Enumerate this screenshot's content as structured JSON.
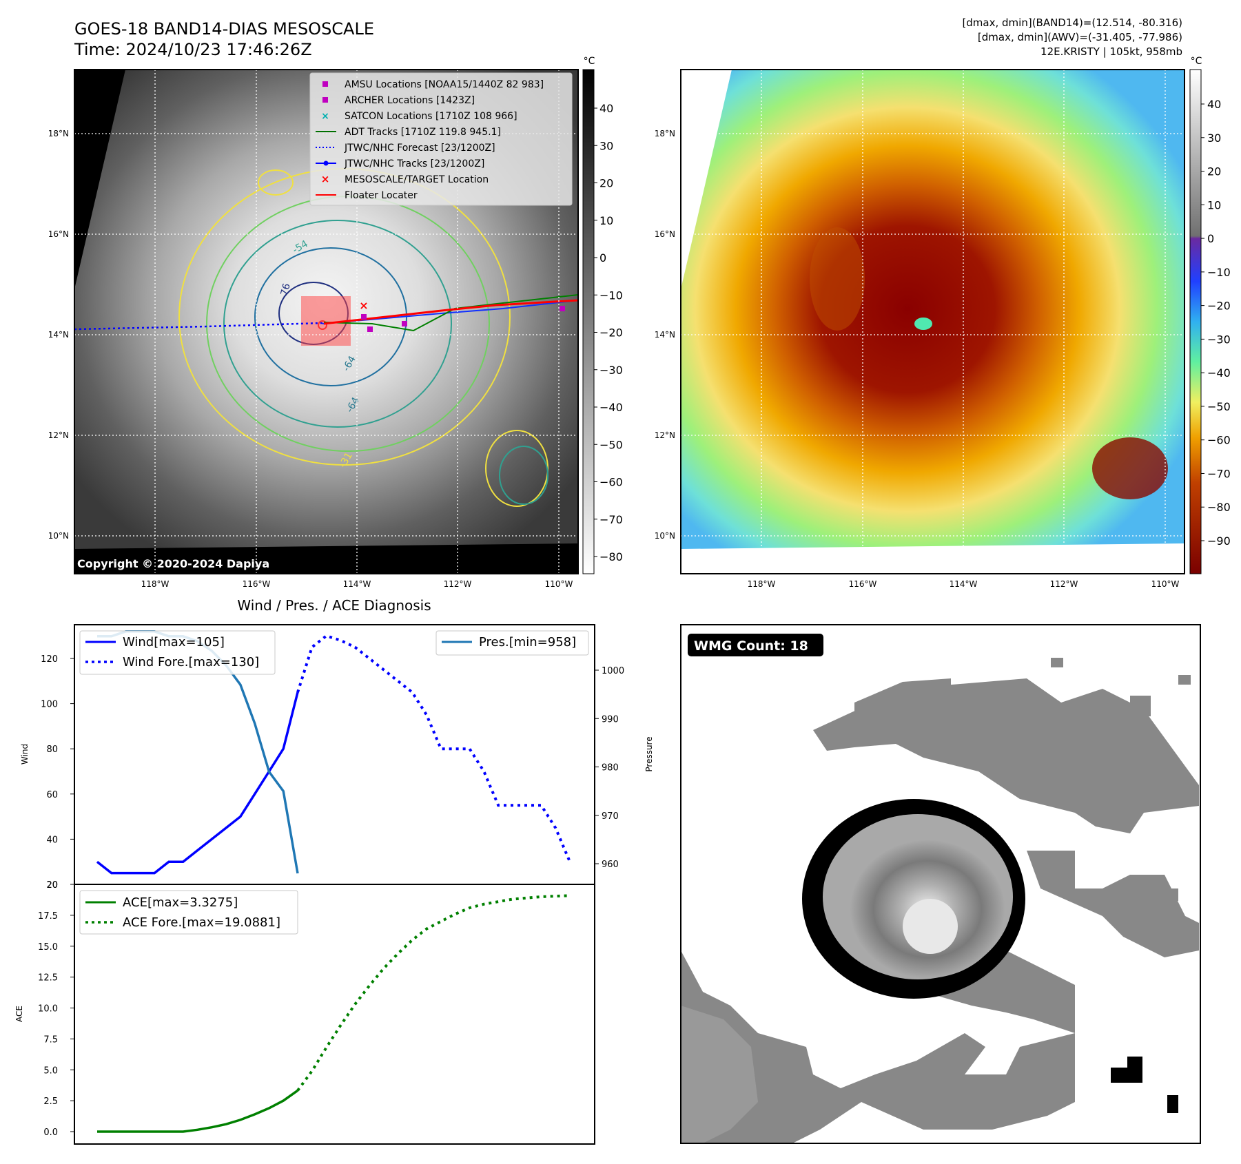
{
  "header": {
    "title": "GOES-18 BAND14-DIAS MESOSCALE",
    "time": "Time: 2024/10/23 17:46:26Z",
    "stats_band14": "[dmax, dmin](BAND14)=(12.514, -80.316)",
    "stats_awv": "[dmax, dmin](AWV)=(-31.405, -77.986)",
    "storm_info": "12E.KRISTY | 105kt, 958mb",
    "copyright": "Copyright © 2020-2024 Dapiya"
  },
  "map": {
    "lon_labels": [
      "118°W",
      "116°W",
      "114°W",
      "112°W",
      "110°W"
    ],
    "lat_labels": [
      "18°N",
      "16°N",
      "14°N",
      "12°N",
      "10°N"
    ],
    "contour_labels": [
      "-64",
      "-64",
      "-76",
      "-54",
      "-31"
    ]
  },
  "legend": [
    {
      "label": "AMSU Locations [NOAA15/1440Z 82 983]",
      "color": "#c000c0",
      "marker": "square"
    },
    {
      "label": "ARCHER Locations [1423Z]",
      "color": "#c000c0",
      "marker": "square"
    },
    {
      "label": "SATCON Locations [1710Z 108 966]",
      "color": "#00b0b0",
      "marker": "x"
    },
    {
      "label": "ADT Tracks [1710Z 119.8 945.1]",
      "color": "#007000",
      "marker": "line-dot"
    },
    {
      "label": "JTWC/NHC Forecast [23/1200Z]",
      "color": "#0000ff",
      "marker": "dotted"
    },
    {
      "label": "JTWC/NHC Tracks [23/1200Z]",
      "color": "#0000ff",
      "marker": "line-dot"
    },
    {
      "label": "MESOSCALE/TARGET Location",
      "color": "#ff0000",
      "marker": "x"
    },
    {
      "label": "Floater Locater",
      "color": "#ff0000",
      "marker": "line"
    }
  ],
  "colorbar_gray": {
    "unit": "°C",
    "ticks": [
      "40",
      "30",
      "20",
      "10",
      "0",
      "−10",
      "−20",
      "−30",
      "−40",
      "−50",
      "−60",
      "−70",
      "−80"
    ]
  },
  "colorbar_color": {
    "unit": "°C",
    "ticks": [
      "40",
      "30",
      "20",
      "10",
      "0",
      "−10",
      "−20",
      "−30",
      "−40",
      "−50",
      "−60",
      "−70",
      "−80",
      "−90"
    ]
  },
  "wmg": {
    "label": "WMG Count: 18"
  },
  "chart_data": [
    {
      "type": "line",
      "title": "Wind / Pres. / ACE Diagnosis",
      "xlabel": "",
      "ylabel": "Wind",
      "ylabel_right": "Pressure",
      "y_ticks": [
        "120",
        "100",
        "80",
        "60",
        "40",
        "20"
      ],
      "y_right_ticks": [
        "1000",
        "990",
        "980",
        "970",
        "960"
      ],
      "ylim": [
        20,
        133
      ],
      "y2lim": [
        955,
        1009
      ],
      "x": [
        0,
        1,
        2,
        3,
        4,
        5,
        6,
        7,
        8,
        9,
        10,
        11,
        12,
        13,
        14,
        15,
        16,
        17,
        18,
        19,
        20,
        21,
        22,
        23,
        24,
        25,
        26,
        27,
        28,
        29,
        30,
        31,
        32,
        33
      ],
      "series": [
        {
          "name": "Wind[max=105]",
          "color": "#0000ff",
          "style": "solid",
          "x": [
            0,
            1,
            2,
            3,
            4,
            5,
            6,
            7,
            8,
            9,
            10,
            11,
            12,
            13,
            14
          ],
          "values": [
            30,
            25,
            25,
            25,
            25,
            30,
            30,
            35,
            40,
            45,
            50,
            60,
            70,
            80,
            105
          ]
        },
        {
          "name": "Wind Fore.[max=130]",
          "color": "#0000ff",
          "style": "dotted",
          "x": [
            14,
            15,
            16,
            17,
            18,
            19,
            20,
            21,
            22,
            23,
            24,
            25,
            26,
            27,
            28,
            29,
            30,
            31,
            32,
            33
          ],
          "values": [
            105,
            125,
            130,
            128,
            125,
            120,
            115,
            110,
            105,
            95,
            80,
            80,
            80,
            70,
            55,
            55,
            55,
            55,
            45,
            30
          ]
        },
        {
          "name": "Pres.[min=958]",
          "color": "#1f77b4",
          "style": "solid",
          "axis": "right",
          "x": [
            0,
            1,
            2,
            3,
            4,
            5,
            6,
            7,
            8,
            9,
            10,
            11,
            12,
            13,
            14
          ],
          "values": [
            1007,
            1007,
            1008,
            1008,
            1008,
            1007,
            1007,
            1006,
            1004,
            1001,
            997,
            989,
            979,
            975,
            958
          ]
        }
      ],
      "legend": [
        "Wind[max=105]",
        "Wind Fore.[max=130]",
        "Pres.[min=958]"
      ]
    },
    {
      "type": "line",
      "title": "",
      "ylabel": "ACE",
      "y_ticks": [
        "20",
        "17.5",
        "15.0",
        "12.5",
        "10.0",
        "7.5",
        "5.0",
        "2.5",
        "0.0"
      ],
      "ylim": [
        -1,
        20
      ],
      "series": [
        {
          "name": "ACE[max=3.3275]",
          "color": "#008000",
          "style": "solid",
          "x": [
            0,
            2,
            4,
            5,
            6,
            7,
            8,
            9,
            10,
            11,
            12,
            13,
            14
          ],
          "values": [
            0,
            0,
            0,
            0,
            0,
            0.15,
            0.35,
            0.6,
            0.95,
            1.4,
            1.9,
            2.5,
            3.3275
          ]
        },
        {
          "name": "ACE Fore.[max=19.0881]",
          "color": "#008000",
          "style": "dotted",
          "x": [
            14,
            15,
            16,
            17,
            18,
            19,
            20,
            21,
            22,
            23,
            24,
            25,
            26,
            27,
            28,
            29,
            30,
            31,
            32,
            33
          ],
          "values": [
            3.3275,
            4.9,
            6.8,
            8.6,
            10.3,
            11.8,
            13.2,
            14.4,
            15.5,
            16.4,
            17.0,
            17.6,
            18.1,
            18.4,
            18.6,
            18.8,
            18.9,
            19.0,
            19.05,
            19.0881
          ]
        }
      ],
      "legend": [
        "ACE[max=3.3275]",
        "ACE Fore.[max=19.0881]"
      ]
    }
  ]
}
